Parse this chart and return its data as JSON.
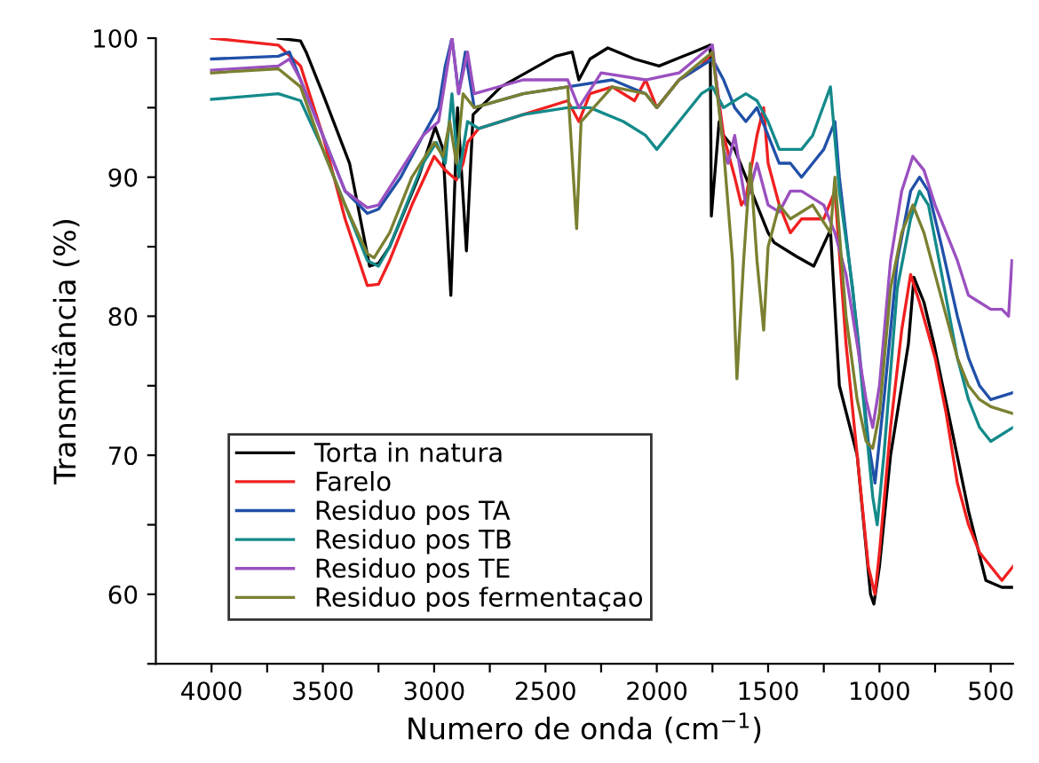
{
  "chart_data": {
    "type": "line",
    "xlabel": "Numero de onda (cm$^{−1}$)",
    "ylabel": "Transmitância (%)",
    "xlim": [
      4250,
      400
    ],
    "ylim": [
      55,
      100
    ],
    "xticks": [
      4000,
      {
        "value": 3750,
        "label": null
      },
      3500,
      {
        "value": 3250,
        "label": null
      },
      3000,
      {
        "value": 2750,
        "label": null
      },
      2500,
      {
        "value": 2250,
        "label": null
      },
      2000,
      {
        "value": 1750,
        "label": null
      },
      1500,
      {
        "value": 1250,
        "label": null
      },
      1000,
      {
        "value": 750,
        "label": null
      },
      500
    ],
    "yticks": [
      {
        "value": 55,
        "label": null
      },
      60,
      {
        "value": 65,
        "label": null
      },
      70,
      {
        "value": 75,
        "label": null
      },
      80,
      {
        "value": 85,
        "label": null
      },
      90,
      {
        "value": 95,
        "label": null
      },
      100
    ],
    "grid": false,
    "legend": "bottom left",
    "marker": "none",
    "line_style": "solid",
    "series": [
      {
        "name": "Torta in natura",
        "color": "#000000",
        "x": [
          3700,
          3600,
          3575,
          3500,
          3380,
          3290,
          3250,
          3200,
          3070,
          2995,
          2960,
          2925,
          2895,
          2855,
          2825,
          2700,
          2455,
          2380,
          2350,
          2300,
          2220,
          2100,
          1990,
          1835,
          1760,
          1755,
          1720,
          1700,
          1650,
          1600,
          1550,
          1500,
          1473,
          1373,
          1295,
          1220,
          1180,
          1100,
          1040,
          1025,
          1000,
          950,
          870,
          845,
          800,
          755,
          677,
          600,
          522,
          450,
          405
        ],
        "values": [
          100,
          99.8,
          99,
          96,
          91,
          83.6,
          83.8,
          85,
          90,
          93.6,
          92,
          81.5,
          95,
          84.7,
          94.5,
          96.5,
          98.7,
          99,
          97,
          98.5,
          99.3,
          98.5,
          98,
          99,
          99.5,
          87.2,
          94,
          93,
          92,
          90,
          88,
          86,
          85.3,
          84.3,
          83.6,
          86.2,
          75,
          70,
          60,
          59.3,
          62,
          70,
          78,
          82.8,
          81,
          78,
          72,
          66,
          61,
          60.5,
          60.5
        ]
      },
      {
        "name": "Farelo",
        "color": "#f02020",
        "x": [
          4000,
          3700,
          3600,
          3500,
          3400,
          3300,
          3250,
          3200,
          3100,
          3000,
          2950,
          2900,
          2870,
          2850,
          2800,
          2600,
          2400,
          2350,
          2300,
          2200,
          2100,
          2050,
          2000,
          1900,
          1800,
          1750,
          1700,
          1650,
          1620,
          1600,
          1550,
          1520,
          1500,
          1450,
          1400,
          1350,
          1300,
          1250,
          1200,
          1150,
          1100,
          1050,
          1020,
          1000,
          950,
          900,
          860,
          820,
          750,
          700,
          650,
          600,
          550,
          500,
          450,
          400
        ],
        "values": [
          100,
          99.5,
          98,
          93,
          87,
          82.2,
          82.3,
          84,
          88,
          91.5,
          90.5,
          89.8,
          91,
          92.5,
          93.5,
          94.5,
          95.5,
          94,
          96,
          96.5,
          95.5,
          97,
          95,
          97,
          98,
          99,
          93,
          90,
          88,
          88.5,
          93,
          95,
          91,
          88,
          86,
          87,
          87,
          87,
          89,
          78,
          70,
          62,
          60,
          63,
          72,
          79,
          83,
          81,
          77,
          73,
          68,
          65,
          63,
          62,
          61,
          62
        ]
      },
      {
        "name": "Residuo pos TA",
        "color": "#2050a8",
        "x": [
          4000,
          3700,
          3650,
          3600,
          3500,
          3400,
          3300,
          3250,
          3150,
          3050,
          2980,
          2950,
          2920,
          2890,
          2860,
          2820,
          2600,
          2400,
          2200,
          2050,
          2000,
          1900,
          1750,
          1700,
          1650,
          1600,
          1550,
          1500,
          1450,
          1400,
          1350,
          1300,
          1250,
          1200,
          1180,
          1100,
          1050,
          1020,
          980,
          920,
          860,
          820,
          780,
          720,
          650,
          600,
          550,
          500,
          400
        ],
        "values": [
          98.5,
          98.7,
          99,
          97,
          93,
          89,
          87.4,
          87.7,
          90,
          93,
          95,
          98,
          100,
          96,
          99,
          95,
          96,
          96.5,
          97,
          96,
          95,
          97,
          98.5,
          97,
          95,
          94,
          95,
          93,
          91,
          91,
          90,
          91,
          92,
          94,
          90,
          79,
          71,
          68,
          74,
          84,
          89,
          90,
          89,
          85,
          80,
          77,
          75,
          74,
          74.5
        ]
      },
      {
        "name": "Residuo pos TB",
        "color": "#148a8a",
        "x": [
          4000,
          3700,
          3600,
          3500,
          3400,
          3300,
          3250,
          3200,
          3100,
          3050,
          2990,
          2950,
          2920,
          2890,
          2850,
          2800,
          2600,
          2400,
          2300,
          2150,
          2050,
          2000,
          1900,
          1800,
          1750,
          1700,
          1600,
          1550,
          1500,
          1450,
          1350,
          1300,
          1220,
          1180,
          1120,
          1060,
          1030,
          1010,
          980,
          920,
          860,
          820,
          780,
          720,
          650,
          600,
          550,
          500,
          400
        ],
        "values": [
          95.6,
          96,
          95.5,
          92,
          88,
          84,
          83.6,
          85,
          89,
          91,
          92.5,
          91,
          96,
          90,
          94,
          93.5,
          94.5,
          95,
          95,
          94,
          93,
          92,
          94,
          96,
          96.5,
          95,
          96,
          95.5,
          94,
          92,
          92,
          93,
          96.5,
          89,
          82,
          72,
          67,
          65,
          70,
          82,
          87,
          89,
          88,
          83,
          77,
          74,
          72,
          71,
          72
        ]
      },
      {
        "name": "Residuo pos TE",
        "color": "#9a50c0",
        "x": [
          4000,
          3700,
          3650,
          3600,
          3500,
          3400,
          3300,
          3250,
          3150,
          3050,
          2980,
          2950,
          2920,
          2890,
          2850,
          2820,
          2600,
          2400,
          2350,
          2250,
          2050,
          1900,
          1750,
          1700,
          1680,
          1650,
          1600,
          1550,
          1500,
          1450,
          1400,
          1350,
          1250,
          1200,
          1150,
          1100,
          1060,
          1030,
          1000,
          950,
          900,
          850,
          800,
          750,
          700,
          650,
          600,
          550,
          500,
          450,
          420,
          405
        ],
        "values": [
          97.7,
          98,
          98.5,
          97,
          93,
          89,
          87.8,
          88,
          90.5,
          93,
          94,
          97,
          100,
          96,
          99,
          96,
          97,
          97,
          95,
          97.5,
          97,
          97.5,
          99.5,
          92,
          91,
          93,
          88,
          91,
          88,
          87.5,
          89,
          89,
          88,
          86,
          83,
          78,
          74,
          72,
          75,
          84,
          89,
          91.5,
          90.5,
          88,
          86,
          84,
          81.5,
          81,
          80.5,
          80.5,
          80,
          84
        ]
      },
      {
        "name": "Residuo pos fermentaçao",
        "color": "#7a8030",
        "x": [
          4000,
          3700,
          3600,
          3500,
          3400,
          3300,
          3270,
          3200,
          3100,
          3000,
          2960,
          2930,
          2900,
          2870,
          2820,
          2600,
          2400,
          2360,
          2340,
          2200,
          2050,
          2000,
          1900,
          1750,
          1700,
          1660,
          1640,
          1610,
          1580,
          1550,
          1520,
          1500,
          1450,
          1400,
          1300,
          1220,
          1200,
          1150,
          1100,
          1060,
          1030,
          1000,
          950,
          900,
          850,
          800,
          750,
          700,
          650,
          600,
          550,
          500,
          400
        ],
        "values": [
          97.5,
          97.8,
          96.5,
          92,
          88,
          84.5,
          84.2,
          86,
          90,
          92.5,
          91.5,
          94,
          91,
          96,
          95,
          96,
          96.5,
          86.3,
          94,
          96.5,
          96,
          95,
          97,
          99,
          92,
          84,
          75.5,
          84,
          91,
          84,
          79,
          85,
          88,
          87,
          88,
          86,
          90,
          80,
          74,
          71,
          70.5,
          73,
          82,
          86,
          88,
          86,
          83,
          80,
          77,
          75,
          74,
          73.5,
          73
        ]
      }
    ]
  }
}
